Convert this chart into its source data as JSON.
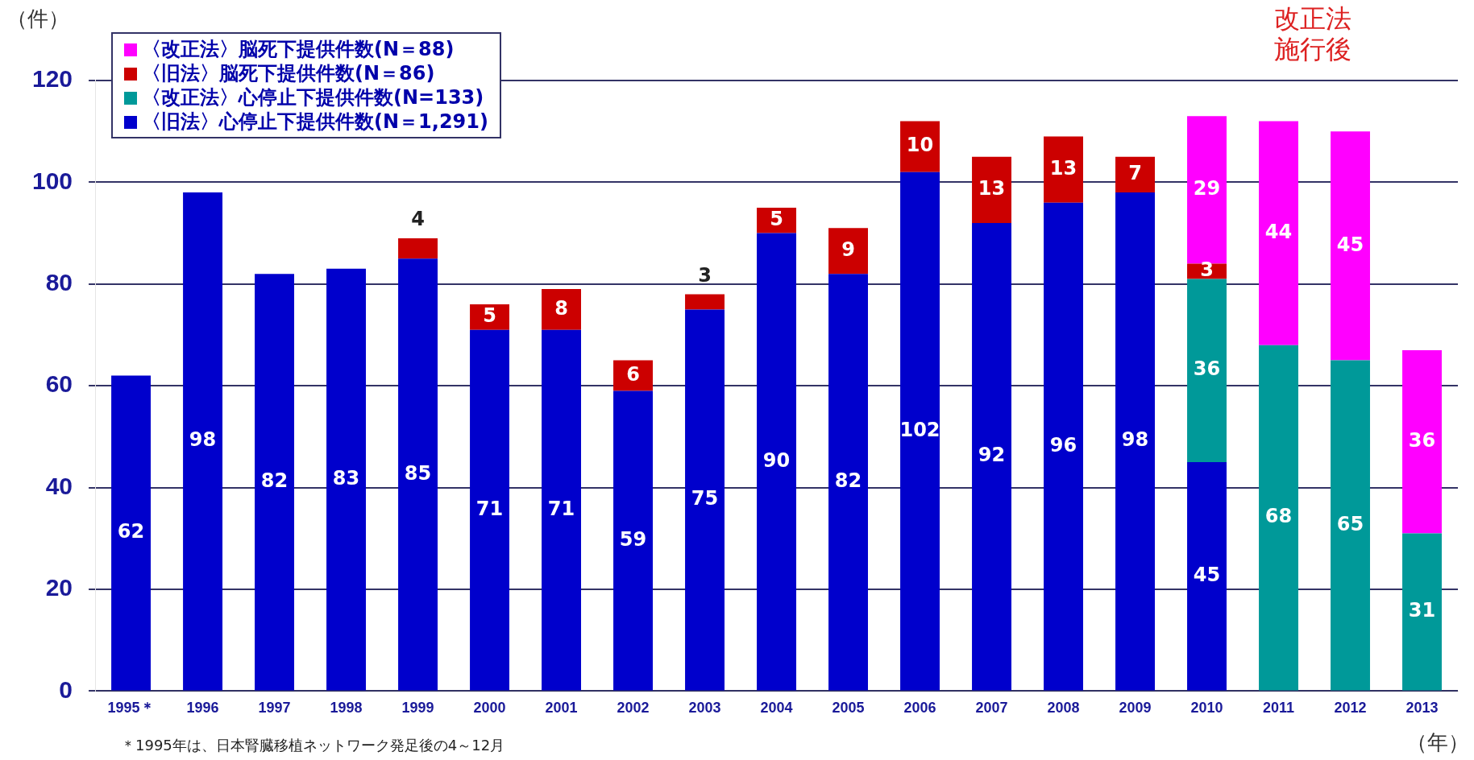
{
  "chart_data": {
    "type": "bar",
    "stacked": true,
    "ylabel": "（件）",
    "xlabel": "（年）",
    "categories": [
      "1995＊",
      "1996",
      "1997",
      "1998",
      "1999",
      "2000",
      "2001",
      "2002",
      "2003",
      "2004",
      "2005",
      "2006",
      "2007",
      "2008",
      "2009",
      "2010",
      "2011",
      "2012",
      "2013"
    ],
    "series": [
      {
        "name": "〈旧法〉心停止下提供件数(N＝1,291)",
        "color": "#0000cc",
        "values": [
          62,
          98,
          82,
          83,
          85,
          71,
          71,
          59,
          75,
          90,
          82,
          102,
          92,
          96,
          98,
          45,
          null,
          null,
          null
        ]
      },
      {
        "name": "〈改正法〉心停止下提供件数(N=133)",
        "color": "#009999",
        "values": [
          null,
          null,
          null,
          null,
          null,
          null,
          null,
          null,
          null,
          null,
          null,
          null,
          null,
          null,
          null,
          36,
          68,
          65,
          31
        ]
      },
      {
        "name": "〈旧法〉脳死下提供件数(N＝86)",
        "color": "#cc0000",
        "values": [
          null,
          null,
          null,
          null,
          4,
          5,
          8,
          6,
          3,
          5,
          9,
          10,
          13,
          13,
          7,
          3,
          null,
          null,
          null
        ]
      },
      {
        "name": "〈改正法〉脳死下提供件数(N＝88)",
        "color": "#ff00ff",
        "values": [
          null,
          null,
          null,
          null,
          null,
          null,
          null,
          null,
          null,
          null,
          null,
          null,
          null,
          null,
          null,
          29,
          44,
          45,
          36
        ]
      }
    ],
    "ylim": [
      0,
      120
    ],
    "yticks": [
      0,
      20,
      40,
      60,
      80,
      100,
      120
    ],
    "grid": "y",
    "legend": "top left",
    "data_labels": true,
    "annotations": [
      "改正法施行後",
      "＊1995年は、日本腎臓移植ネットワーク発足後の4～12月"
    ]
  }
}
